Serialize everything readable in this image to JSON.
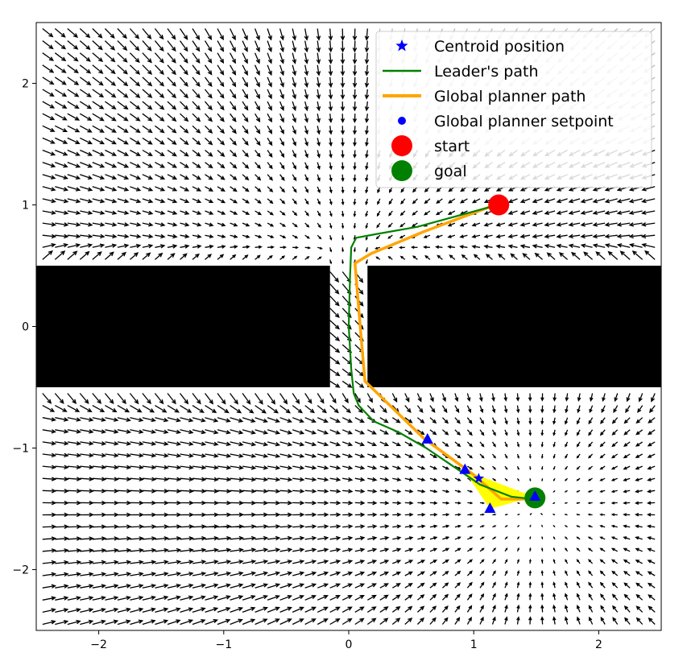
{
  "chart_data": {
    "type": "line",
    "title": "",
    "xlabel": "",
    "ylabel": "",
    "xlim": [
      -2.5,
      2.5
    ],
    "ylim": [
      -2.5,
      2.5
    ],
    "x_ticks": [
      -2,
      -1,
      0,
      1,
      2
    ],
    "y_ticks": [
      -2,
      -1,
      0,
      1,
      2
    ],
    "x_tick_labels": [
      "−2",
      "−1",
      "0",
      "1",
      "2"
    ],
    "y_tick_labels": [
      "−2",
      "−1",
      "0",
      "1",
      "2"
    ],
    "grid": false,
    "legend_position": "top-right",
    "legend": [
      {
        "label": "Centroid position",
        "marker": "star",
        "color": "#0000ff"
      },
      {
        "label": "Leader's path",
        "marker": "line",
        "color": "#008000"
      },
      {
        "label": "Global planner path",
        "marker": "thick-line",
        "color": "#ffa500"
      },
      {
        "label": "Global planner setpoint",
        "marker": "dot",
        "color": "#0000ff"
      },
      {
        "label": "start",
        "marker": "circle",
        "color": "#ff0000"
      },
      {
        "label": "goal",
        "marker": "circle",
        "color": "#008000"
      }
    ],
    "obstacles": [
      {
        "x0": -2.5,
        "x1": -0.15,
        "y0": -0.5,
        "y1": 0.5,
        "color": "#000000"
      },
      {
        "x0": 0.15,
        "x1": 2.5,
        "y0": -0.5,
        "y1": 0.5,
        "color": "#000000"
      }
    ],
    "global_planner_path": {
      "color": "#ffa500",
      "x": [
        1.2,
        1.12,
        0.6,
        0.18,
        0.05,
        0.1,
        0.13,
        0.6,
        1.0,
        1.22,
        1.48
      ],
      "y": [
        1.0,
        0.98,
        0.78,
        0.6,
        0.52,
        -0.1,
        -0.45,
        -0.92,
        -1.22,
        -1.42,
        -1.42
      ]
    },
    "leader_path": {
      "color": "#008000",
      "x": [
        1.25,
        1.12,
        0.55,
        0.22,
        0.06,
        0.02,
        0.01,
        0.0,
        0.02,
        0.04,
        0.08,
        0.2,
        0.4,
        0.62,
        0.85,
        1.05,
        1.3,
        1.48
      ],
      "y": [
        1.0,
        0.98,
        0.82,
        0.76,
        0.73,
        0.65,
        0.4,
        0.0,
        -0.35,
        -0.55,
        -0.65,
        -0.78,
        -0.87,
        -1.0,
        -1.16,
        -1.3,
        -1.4,
        -1.42
      ]
    },
    "formation_area": {
      "color": "#ffff00",
      "x": [
        0.92,
        1.48,
        1.13
      ],
      "y": [
        -1.18,
        -1.4,
        -1.5
      ]
    },
    "robots": {
      "marker": "triangle",
      "color": "#0000ff",
      "x": [
        0.63,
        0.93,
        1.13,
        1.49
      ],
      "y": [
        -0.93,
        -1.18,
        -1.5,
        -1.4
      ]
    },
    "centroid": {
      "x": 1.04,
      "y": -1.25,
      "color": "#0000ff"
    },
    "start": {
      "x": 1.2,
      "y": 1.0,
      "color": "#ff0000"
    },
    "goal": {
      "x": 1.49,
      "y": -1.41,
      "color": "#008000"
    },
    "vector_field": {
      "attractor": {
        "x": 1.5,
        "y": -1.5
      },
      "gap": {
        "x": 0.0,
        "y": 0.5
      },
      "spacing": 0.1,
      "arrow_color": "#000000",
      "fade_color": "#bbbbbb"
    }
  }
}
